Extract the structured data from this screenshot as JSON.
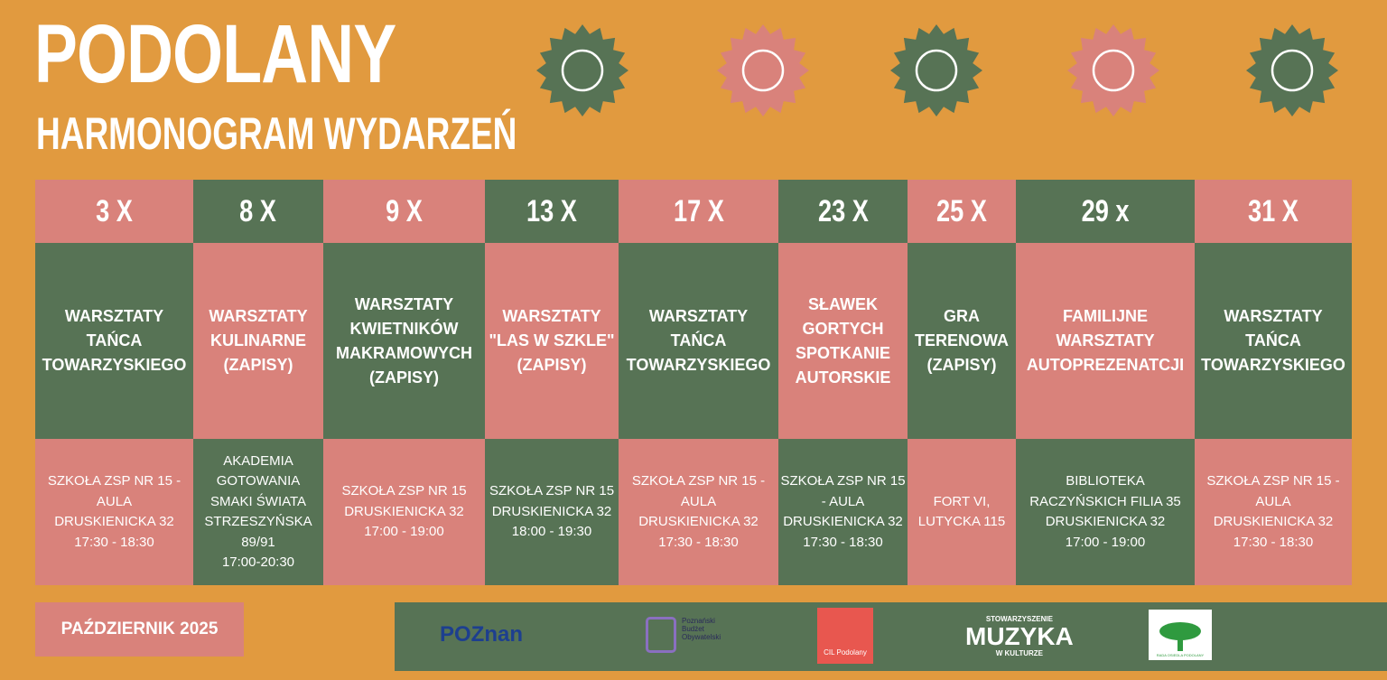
{
  "header": {
    "title": "PODOLANY",
    "subtitle": "HARMONOGRAM WYDARZEŃ"
  },
  "schedule": [
    {
      "date": "3 X",
      "event": [
        "WARSZTATY",
        "TAŃCA",
        "TOWARZYSKIEGO"
      ],
      "place": [
        "SZKOŁA ZSP NR 15 -",
        "AULA",
        "DRUSKIENICKA 32",
        "17:30 - 18:30"
      ]
    },
    {
      "date": "8 X",
      "event": [
        "WARSZTATY",
        "KULINARNE",
        "(ZAPISY)"
      ],
      "place": [
        "AKADEMIA",
        "GOTOWANIA",
        "SMAKI ŚWIATA",
        "STRZESZYŃSKA",
        "89/91",
        "17:00-20:30"
      ]
    },
    {
      "date": "9 X",
      "event": [
        "WARSZTATY",
        "KWIETNIKÓW",
        "MAKRAMOWYCH",
        "(ZAPISY)"
      ],
      "place": [
        "SZKOŁA ZSP NR 15",
        "DRUSKIENICKA 32",
        "17:00 - 19:00"
      ]
    },
    {
      "date": "13 X",
      "event": [
        "WARSZTATY",
        "\"LAS W SZKLE\"",
        "(ZAPISY)"
      ],
      "place": [
        "SZKOŁA ZSP NR 15",
        "DRUSKIENICKA 32",
        "18:00 - 19:30"
      ]
    },
    {
      "date": "17 X",
      "event": [
        "WARSZTATY",
        "TAŃCA",
        "TOWARZYSKIEGO"
      ],
      "place": [
        "SZKOŁA ZSP NR 15 -",
        "AULA",
        "DRUSKIENICKA 32",
        "17:30 - 18:30"
      ]
    },
    {
      "date": "23 X",
      "event": [
        "SŁAWEK",
        "GORTYCH",
        "SPOTKANIE",
        "AUTORSKIE"
      ],
      "place": [
        "SZKOŁA ZSP NR 15",
        "- AULA",
        "DRUSKIENICKA 32",
        "17:30 - 18:30"
      ]
    },
    {
      "date": "25 X",
      "event": [
        "GRA",
        "TERENOWA",
        "(ZAPISY)"
      ],
      "place": [
        "FORT VI,",
        "LUTYCKA 115"
      ]
    },
    {
      "date": "29 x",
      "event": [
        "FAMILIJNE",
        "WARSZTATY",
        "AUTOPREZENATCJI"
      ],
      "place": [
        "BIBLIOTEKA",
        "RACZYŃSKICH FILIA 35",
        "DRUSKIENICKA 32",
        "17:00 - 19:00"
      ]
    },
    {
      "date": "31 X",
      "event": [
        "WARSZTATY",
        "TAŃCA",
        "TOWARZYSKIEGO"
      ],
      "place": [
        "SZKOŁA ZSP NR 15 -",
        "AULA",
        "DRUSKIENICKA 32",
        "17:30 - 18:30"
      ]
    }
  ],
  "footer": {
    "month": "PAŹDZIERNIK 2025",
    "logos": {
      "poznan": "POZnan",
      "pbo": [
        "Poznański",
        "Budżet",
        "Obywatelski"
      ],
      "cil": "CIL Podolany",
      "muzyka": [
        "STOWARZYSZENIE",
        "MUZYKA",
        "W KULTURZE"
      ],
      "rada": "RADA OSIEDLA PODOLANY"
    }
  }
}
